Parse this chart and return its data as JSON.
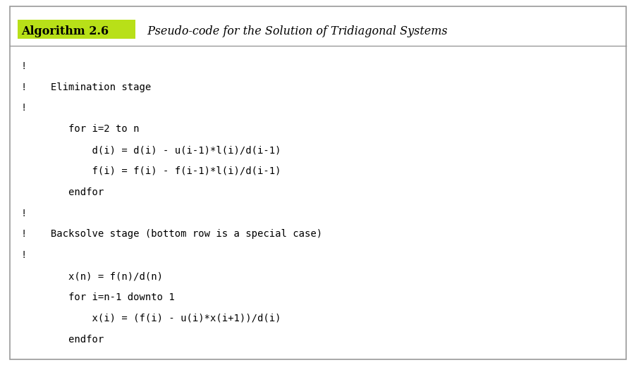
{
  "title_bold": "Algorithm 2.6",
  "title_italic": "  Pseudo-code for the Solution of Tridiagonal Systems",
  "highlight_color": "#b8e018",
  "border_color": "#999999",
  "bg_color": "#ffffff",
  "text_color": "#000000",
  "title_fontsize": 11.5,
  "code_fontsize": 10.0,
  "figwidth": 9.03,
  "figheight": 5.18,
  "dpi": 100,
  "code_lines": [
    "!",
    "!    Elimination stage",
    "!",
    "        for i=2 to n",
    "            d(i) = d(i) - u(i-1)*l(i)/d(i-1)",
    "            f(i) = f(i) - f(i-1)*l(i)/d(i-1)",
    "        endfor",
    "!",
    "!    Backsolve stage (bottom row is a special case)",
    "!",
    "        x(n) = f(n)/d(n)",
    "        for i=n-1 downto 1",
    "            x(i) = (f(i) - u(i)*x(i+1))/d(i)",
    "        endfor"
  ]
}
